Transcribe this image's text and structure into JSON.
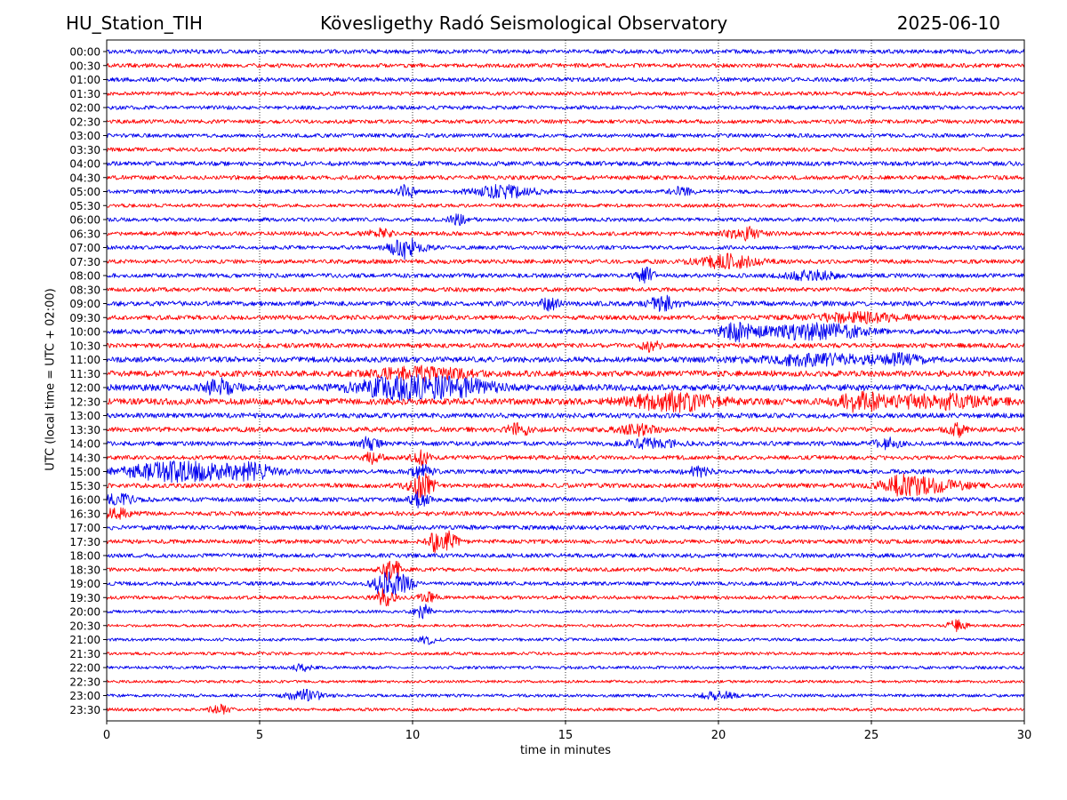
{
  "header": {
    "station": "HU_Station_TIH",
    "observatory": "Kövesligethy Radó Seismological Observatory",
    "date": "2025-06-10"
  },
  "chart_data": {
    "type": "line",
    "chart_kind": "helicorder seismogram",
    "xlabel": "time in minutes",
    "ylabel": "UTC (local time = UTC + 02:00)",
    "xlim": [
      0,
      30
    ],
    "x_ticks": [
      0,
      5,
      10,
      15,
      20,
      25,
      30
    ],
    "x_tick_labels": [
      "0",
      "5",
      "10",
      "15",
      "20",
      "25",
      "30"
    ],
    "vertical_gridlines_at": [
      5,
      10,
      15,
      20,
      25
    ],
    "grid_style": "dotted",
    "colors": [
      "#0000ee",
      "#ff0000"
    ],
    "rows": [
      {
        "label": "00:00",
        "color": "#0000ee",
        "amplitude": 0.3,
        "events": []
      },
      {
        "label": "00:30",
        "color": "#ff0000",
        "amplitude": 0.3,
        "events": []
      },
      {
        "label": "01:00",
        "color": "#0000ee",
        "amplitude": 0.3,
        "events": []
      },
      {
        "label": "01:30",
        "color": "#ff0000",
        "amplitude": 0.28,
        "events": []
      },
      {
        "label": "02:00",
        "color": "#0000ee",
        "amplitude": 0.28,
        "events": []
      },
      {
        "label": "02:30",
        "color": "#ff0000",
        "amplitude": 0.28,
        "events": []
      },
      {
        "label": "03:00",
        "color": "#0000ee",
        "amplitude": 0.28,
        "events": []
      },
      {
        "label": "03:30",
        "color": "#ff0000",
        "amplitude": 0.28,
        "events": []
      },
      {
        "label": "04:00",
        "color": "#0000ee",
        "amplitude": 0.32,
        "events": []
      },
      {
        "label": "04:30",
        "color": "#ff0000",
        "amplitude": 0.3,
        "events": []
      },
      {
        "label": "05:00",
        "color": "#0000ee",
        "amplitude": 0.28,
        "events": [
          [
            9.8,
            0.9,
            0.3
          ],
          [
            13.0,
            0.8,
            1.0
          ],
          [
            18.8,
            0.8,
            0.3
          ]
        ]
      },
      {
        "label": "05:30",
        "color": "#ff0000",
        "amplitude": 0.25,
        "events": []
      },
      {
        "label": "06:00",
        "color": "#0000ee",
        "amplitude": 0.28,
        "events": [
          [
            11.5,
            0.6,
            0.3
          ]
        ]
      },
      {
        "label": "06:30",
        "color": "#ff0000",
        "amplitude": 0.3,
        "events": [
          [
            8.9,
            0.6,
            0.4
          ],
          [
            20.8,
            1.0,
            0.5
          ]
        ]
      },
      {
        "label": "07:00",
        "color": "#0000ee",
        "amplitude": 0.28,
        "events": [
          [
            9.8,
            1.6,
            0.5
          ]
        ]
      },
      {
        "label": "07:30",
        "color": "#ff0000",
        "amplitude": 0.3,
        "events": [
          [
            20.3,
            0.9,
            1.0
          ]
        ]
      },
      {
        "label": "08:00",
        "color": "#0000ee",
        "amplitude": 0.3,
        "events": [
          [
            17.6,
            1.0,
            0.3
          ],
          [
            23.0,
            0.6,
            0.8
          ]
        ]
      },
      {
        "label": "08:30",
        "color": "#ff0000",
        "amplitude": 0.3,
        "events": []
      },
      {
        "label": "09:00",
        "color": "#0000ee",
        "amplitude": 0.35,
        "events": [
          [
            14.5,
            0.8,
            0.3
          ],
          [
            18.2,
            0.9,
            0.5
          ]
        ]
      },
      {
        "label": "09:30",
        "color": "#ff0000",
        "amplitude": 0.33,
        "events": [
          [
            24.5,
            0.6,
            1.5
          ]
        ]
      },
      {
        "label": "10:00",
        "color": "#0000ee",
        "amplitude": 0.35,
        "events": [
          [
            20.7,
            1.2,
            0.6
          ],
          [
            23.2,
            1.1,
            1.5
          ]
        ]
      },
      {
        "label": "10:30",
        "color": "#ff0000",
        "amplitude": 0.33,
        "events": [
          [
            17.8,
            0.7,
            0.3
          ]
        ]
      },
      {
        "label": "11:00",
        "color": "#0000ee",
        "amplitude": 0.38,
        "events": [
          [
            23.0,
            0.7,
            2.0
          ],
          [
            26.0,
            0.6,
            0.8
          ]
        ]
      },
      {
        "label": "11:30",
        "color": "#ff0000",
        "amplitude": 0.42,
        "events": [
          [
            10.3,
            0.8,
            1.5
          ]
        ]
      },
      {
        "label": "12:00",
        "color": "#0000ee",
        "amplitude": 0.45,
        "events": [
          [
            3.7,
            1.0,
            0.5
          ],
          [
            9.8,
            1.5,
            1.6
          ],
          [
            11.8,
            0.8,
            1.0
          ]
        ]
      },
      {
        "label": "12:30",
        "color": "#ff0000",
        "amplitude": 0.45,
        "events": [
          [
            18.5,
            1.2,
            1.4
          ],
          [
            24.6,
            1.3,
            0.6
          ],
          [
            27.2,
            0.9,
            1.8
          ]
        ]
      },
      {
        "label": "13:00",
        "color": "#0000ee",
        "amplitude": 0.35,
        "events": []
      },
      {
        "label": "13:30",
        "color": "#ff0000",
        "amplitude": 0.35,
        "events": [
          [
            13.5,
            0.8,
            0.4
          ],
          [
            17.3,
            0.7,
            0.6
          ],
          [
            27.8,
            0.9,
            0.3
          ]
        ]
      },
      {
        "label": "14:00",
        "color": "#0000ee",
        "amplitude": 0.32,
        "events": [
          [
            8.6,
            0.9,
            0.3
          ],
          [
            17.8,
            0.6,
            0.8
          ],
          [
            25.5,
            0.7,
            0.4
          ]
        ]
      },
      {
        "label": "14:30",
        "color": "#ff0000",
        "amplitude": 0.3,
        "events": [
          [
            8.7,
            0.8,
            0.3
          ],
          [
            10.3,
            1.0,
            0.3
          ]
        ]
      },
      {
        "label": "15:00",
        "color": "#0000ee",
        "amplitude": 0.32,
        "events": [
          [
            2.4,
            1.3,
            1.8
          ],
          [
            4.8,
            0.9,
            0.8
          ],
          [
            10.3,
            1.0,
            0.3
          ],
          [
            19.3,
            0.6,
            0.4
          ]
        ]
      },
      {
        "label": "15:30",
        "color": "#ff0000",
        "amplitude": 0.32,
        "events": [
          [
            10.3,
            1.6,
            0.4
          ],
          [
            26.0,
            1.0,
            0.6
          ],
          [
            26.9,
            0.8,
            1.2
          ]
        ]
      },
      {
        "label": "16:00",
        "color": "#0000ee",
        "amplitude": 0.32,
        "events": [
          [
            0.4,
            0.7,
            0.5
          ],
          [
            10.2,
            1.0,
            0.3
          ]
        ]
      },
      {
        "label": "16:30",
        "color": "#ff0000",
        "amplitude": 0.3,
        "events": [
          [
            0.3,
            0.6,
            0.5
          ]
        ]
      },
      {
        "label": "17:00",
        "color": "#0000ee",
        "amplitude": 0.32,
        "events": []
      },
      {
        "label": "17:30",
        "color": "#ff0000",
        "amplitude": 0.3,
        "events": [
          [
            10.8,
            1.3,
            0.3
          ],
          [
            11.2,
            1.1,
            0.3
          ]
        ]
      },
      {
        "label": "18:00",
        "color": "#0000ee",
        "amplitude": 0.3,
        "events": []
      },
      {
        "label": "18:30",
        "color": "#ff0000",
        "amplitude": 0.28,
        "events": [
          [
            9.3,
            1.6,
            0.3
          ]
        ]
      },
      {
        "label": "19:00",
        "color": "#0000ee",
        "amplitude": 0.28,
        "events": [
          [
            9.1,
            1.8,
            0.35
          ],
          [
            9.7,
            1.4,
            0.3
          ]
        ]
      },
      {
        "label": "19:30",
        "color": "#ff0000",
        "amplitude": 0.25,
        "events": [
          [
            9.1,
            1.2,
            0.3
          ],
          [
            10.5,
            0.6,
            0.3
          ]
        ]
      },
      {
        "label": "20:00",
        "color": "#0000ee",
        "amplitude": 0.22,
        "events": [
          [
            10.3,
            1.2,
            0.25
          ]
        ]
      },
      {
        "label": "20:30",
        "color": "#ff0000",
        "amplitude": 0.2,
        "events": [
          [
            27.8,
            0.7,
            0.3
          ]
        ]
      },
      {
        "label": "21:00",
        "color": "#0000ee",
        "amplitude": 0.22,
        "events": [
          [
            10.5,
            0.5,
            0.3
          ]
        ]
      },
      {
        "label": "21:30",
        "color": "#ff0000",
        "amplitude": 0.22,
        "events": []
      },
      {
        "label": "22:00",
        "color": "#0000ee",
        "amplitude": 0.22,
        "events": [
          [
            6.4,
            0.5,
            0.3
          ]
        ]
      },
      {
        "label": "22:30",
        "color": "#ff0000",
        "amplitude": 0.2,
        "events": []
      },
      {
        "label": "23:00",
        "color": "#0000ee",
        "amplitude": 0.22,
        "events": [
          [
            6.5,
            0.7,
            0.6
          ],
          [
            20.0,
            0.5,
            0.6
          ]
        ]
      },
      {
        "label": "23:30",
        "color": "#ff0000",
        "amplitude": 0.22,
        "events": [
          [
            3.7,
            0.6,
            0.3
          ]
        ]
      }
    ]
  }
}
